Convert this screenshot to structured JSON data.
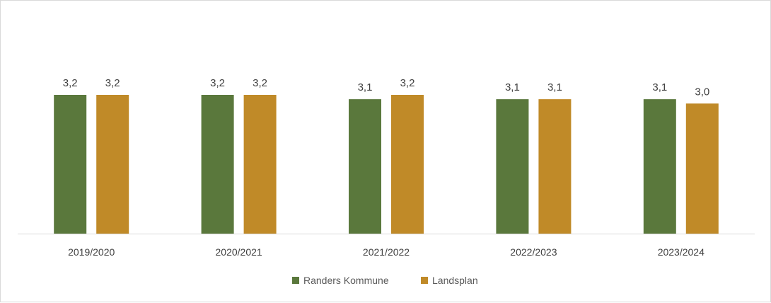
{
  "chart_data": {
    "type": "bar",
    "title": "",
    "xlabel": "",
    "ylabel": "",
    "ylim": [
      0,
      3.2
    ],
    "grid": false,
    "legend_position": "bottom",
    "categories": [
      "2019/2020",
      "2020/2021",
      "2021/2022",
      "2022/2023",
      "2023/2024"
    ],
    "series": [
      {
        "name": "Randers Kommune",
        "color": "#5A783C",
        "values": [
          3.2,
          3.2,
          3.1,
          3.1,
          3.1
        ],
        "labels": [
          "3,2",
          "3,2",
          "3,1",
          "3,1",
          "3,1"
        ]
      },
      {
        "name": "Landsplan",
        "color": "#C08A28",
        "values": [
          3.2,
          3.2,
          3.2,
          3.1,
          3.0
        ],
        "labels": [
          "3,2",
          "3,2",
          "3,2",
          "3,1",
          "3,0"
        ]
      }
    ]
  }
}
